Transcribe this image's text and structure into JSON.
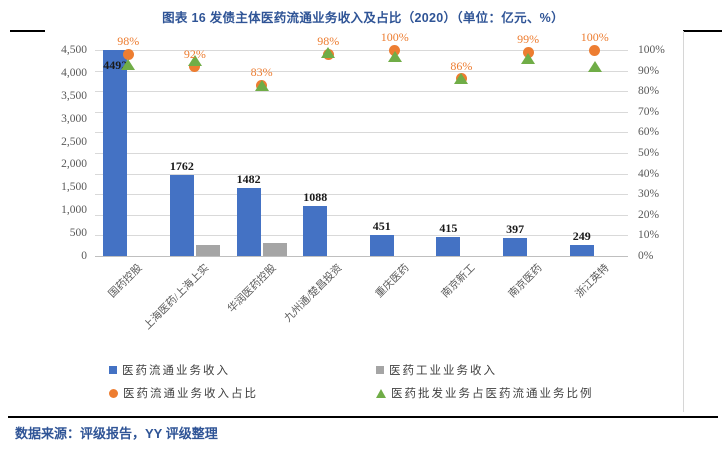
{
  "page": {
    "title": "图表 16 发债主体医药流通业务收入及占比（2020）（单位：亿元、%）",
    "source_note": "数据来源：评级报告，YY 评级整理"
  },
  "colors": {
    "title_blue": "#2F5496",
    "bar_blue": "#4472C4",
    "bar_gray": "#A5A5A5",
    "dot_orange": "#ED7D31",
    "triangle_green": "#70AD47",
    "gridline": "#D9D9D9",
    "axis_text": "#595959"
  },
  "chart_data": {
    "type": "bar",
    "title": "发债主体医药流通业务收入及占比（2020）",
    "units": "亿元、%",
    "categories": [
      "国药控股",
      "上海医药/上海上实",
      "华润医药控股",
      "九州通/楚昌投资",
      "重庆医药",
      "南京新工",
      "南京医药",
      "浙江英特"
    ],
    "series": [
      {
        "name": "医药流通业务收入",
        "type": "bar",
        "axis": "left",
        "color": "#4472C4",
        "values": [
          4492,
          1762,
          1482,
          1088,
          451,
          415,
          397,
          249
        ],
        "data_labels": [
          "4492",
          "1762",
          "1482",
          "1088",
          "451",
          "415",
          "397",
          "249"
        ]
      },
      {
        "name": "医药工业业务收入",
        "type": "bar",
        "axis": "left",
        "color": "#A5A5A5",
        "values": [
          null,
          240,
          290,
          null,
          null,
          null,
          null,
          null
        ],
        "data_labels": null
      },
      {
        "name": "医药流通业务收入占比",
        "type": "point-circle",
        "axis": "right",
        "color": "#ED7D31",
        "values": [
          98,
          92,
          83,
          98,
          100,
          86,
          99,
          100
        ],
        "data_labels": [
          "98%",
          "92%",
          "83%",
          "98%",
          "100%",
          "86%",
          "99%",
          "100%"
        ]
      },
      {
        "name": "医药批发业务占医药流通业务比例",
        "type": "point-triangle",
        "axis": "right",
        "color": "#70AD47",
        "values": [
          93,
          95,
          83,
          99,
          97,
          86,
          96,
          92
        ],
        "data_labels": null
      }
    ],
    "y_left": {
      "min": 0,
      "max": 4500,
      "ticks": [
        "0",
        "500",
        "1,000",
        "1,500",
        "2,000",
        "2,500",
        "3,000",
        "3,500",
        "4,000",
        "4,500"
      ]
    },
    "y_right": {
      "min": 0,
      "max": 100,
      "ticks": [
        "0%",
        "10%",
        "20%",
        "30%",
        "40%",
        "50%",
        "60%",
        "70%",
        "80%",
        "90%",
        "100%"
      ]
    },
    "grid": "horizontal lines every 10% (right axis)",
    "legend_position": "bottom, two columns",
    "legend": [
      {
        "label": "医药流通业务收入",
        "marker": "square",
        "color": "#4472C4"
      },
      {
        "label": "医药工业业务收入",
        "marker": "square",
        "color": "#A5A5A5"
      },
      {
        "label": "医药流通业务收入占比",
        "marker": "circle",
        "color": "#ED7D31"
      },
      {
        "label": "医药批发业务占医药流通业务比例",
        "marker": "triangle",
        "color": "#70AD47"
      }
    ]
  }
}
